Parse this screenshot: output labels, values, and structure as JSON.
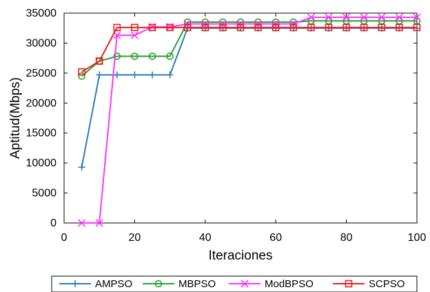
{
  "chart_data": {
    "type": "line",
    "title": "",
    "xlabel": "Iteraciones",
    "ylabel": "Aptitud(Mbps)",
    "xlim": [
      0,
      100
    ],
    "ylim": [
      0,
      35000
    ],
    "x_ticks": [
      0,
      20,
      40,
      60,
      80,
      100
    ],
    "x_tick_labels": [
      "0",
      "20",
      "40",
      "60",
      "80",
      "100"
    ],
    "y_ticks": [
      0,
      5000,
      10000,
      15000,
      20000,
      25000,
      30000,
      35000
    ],
    "y_tick_labels": [
      "0",
      "5000",
      "10000",
      "15000",
      "20000",
      "25000",
      "30000",
      "35000"
    ],
    "grid": false,
    "legend_position": "bottom",
    "x": [
      5,
      10,
      15,
      20,
      25,
      30,
      35,
      40,
      45,
      50,
      55,
      60,
      65,
      70,
      75,
      80,
      85,
      90,
      95,
      100
    ],
    "series": [
      {
        "name": "AMPSO",
        "color": "#2b7bba",
        "marker": "plus",
        "values": [
          9300,
          24700,
          24700,
          24700,
          24700,
          24700,
          32500,
          32500,
          32500,
          32500,
          32500,
          32500,
          32500,
          32500,
          32500,
          32500,
          32500,
          32500,
          32500,
          32500
        ]
      },
      {
        "name": "MBPSO",
        "color": "#21a32a",
        "marker": "circle",
        "values": [
          24500,
          27000,
          27800,
          27800,
          27800,
          27800,
          33500,
          33500,
          33500,
          33500,
          33500,
          33500,
          33500,
          33700,
          33700,
          33700,
          33700,
          33700,
          33700,
          33700
        ]
      },
      {
        "name": "ModBPSO",
        "color": "#ff33ff",
        "marker": "x",
        "values": [
          0,
          0,
          31300,
          31300,
          32700,
          32700,
          33200,
          33200,
          33200,
          33200,
          33200,
          33200,
          33200,
          34300,
          34300,
          34300,
          34300,
          34300,
          34300,
          34300
        ]
      },
      {
        "name": "SCPSO",
        "color": "#ee1c1c",
        "marker": "square",
        "values": [
          25200,
          27000,
          32600,
          32600,
          32600,
          32600,
          32600,
          32600,
          32600,
          32600,
          32600,
          32600,
          32600,
          32600,
          32600,
          32600,
          32600,
          32600,
          32600,
          32600
        ]
      }
    ]
  }
}
